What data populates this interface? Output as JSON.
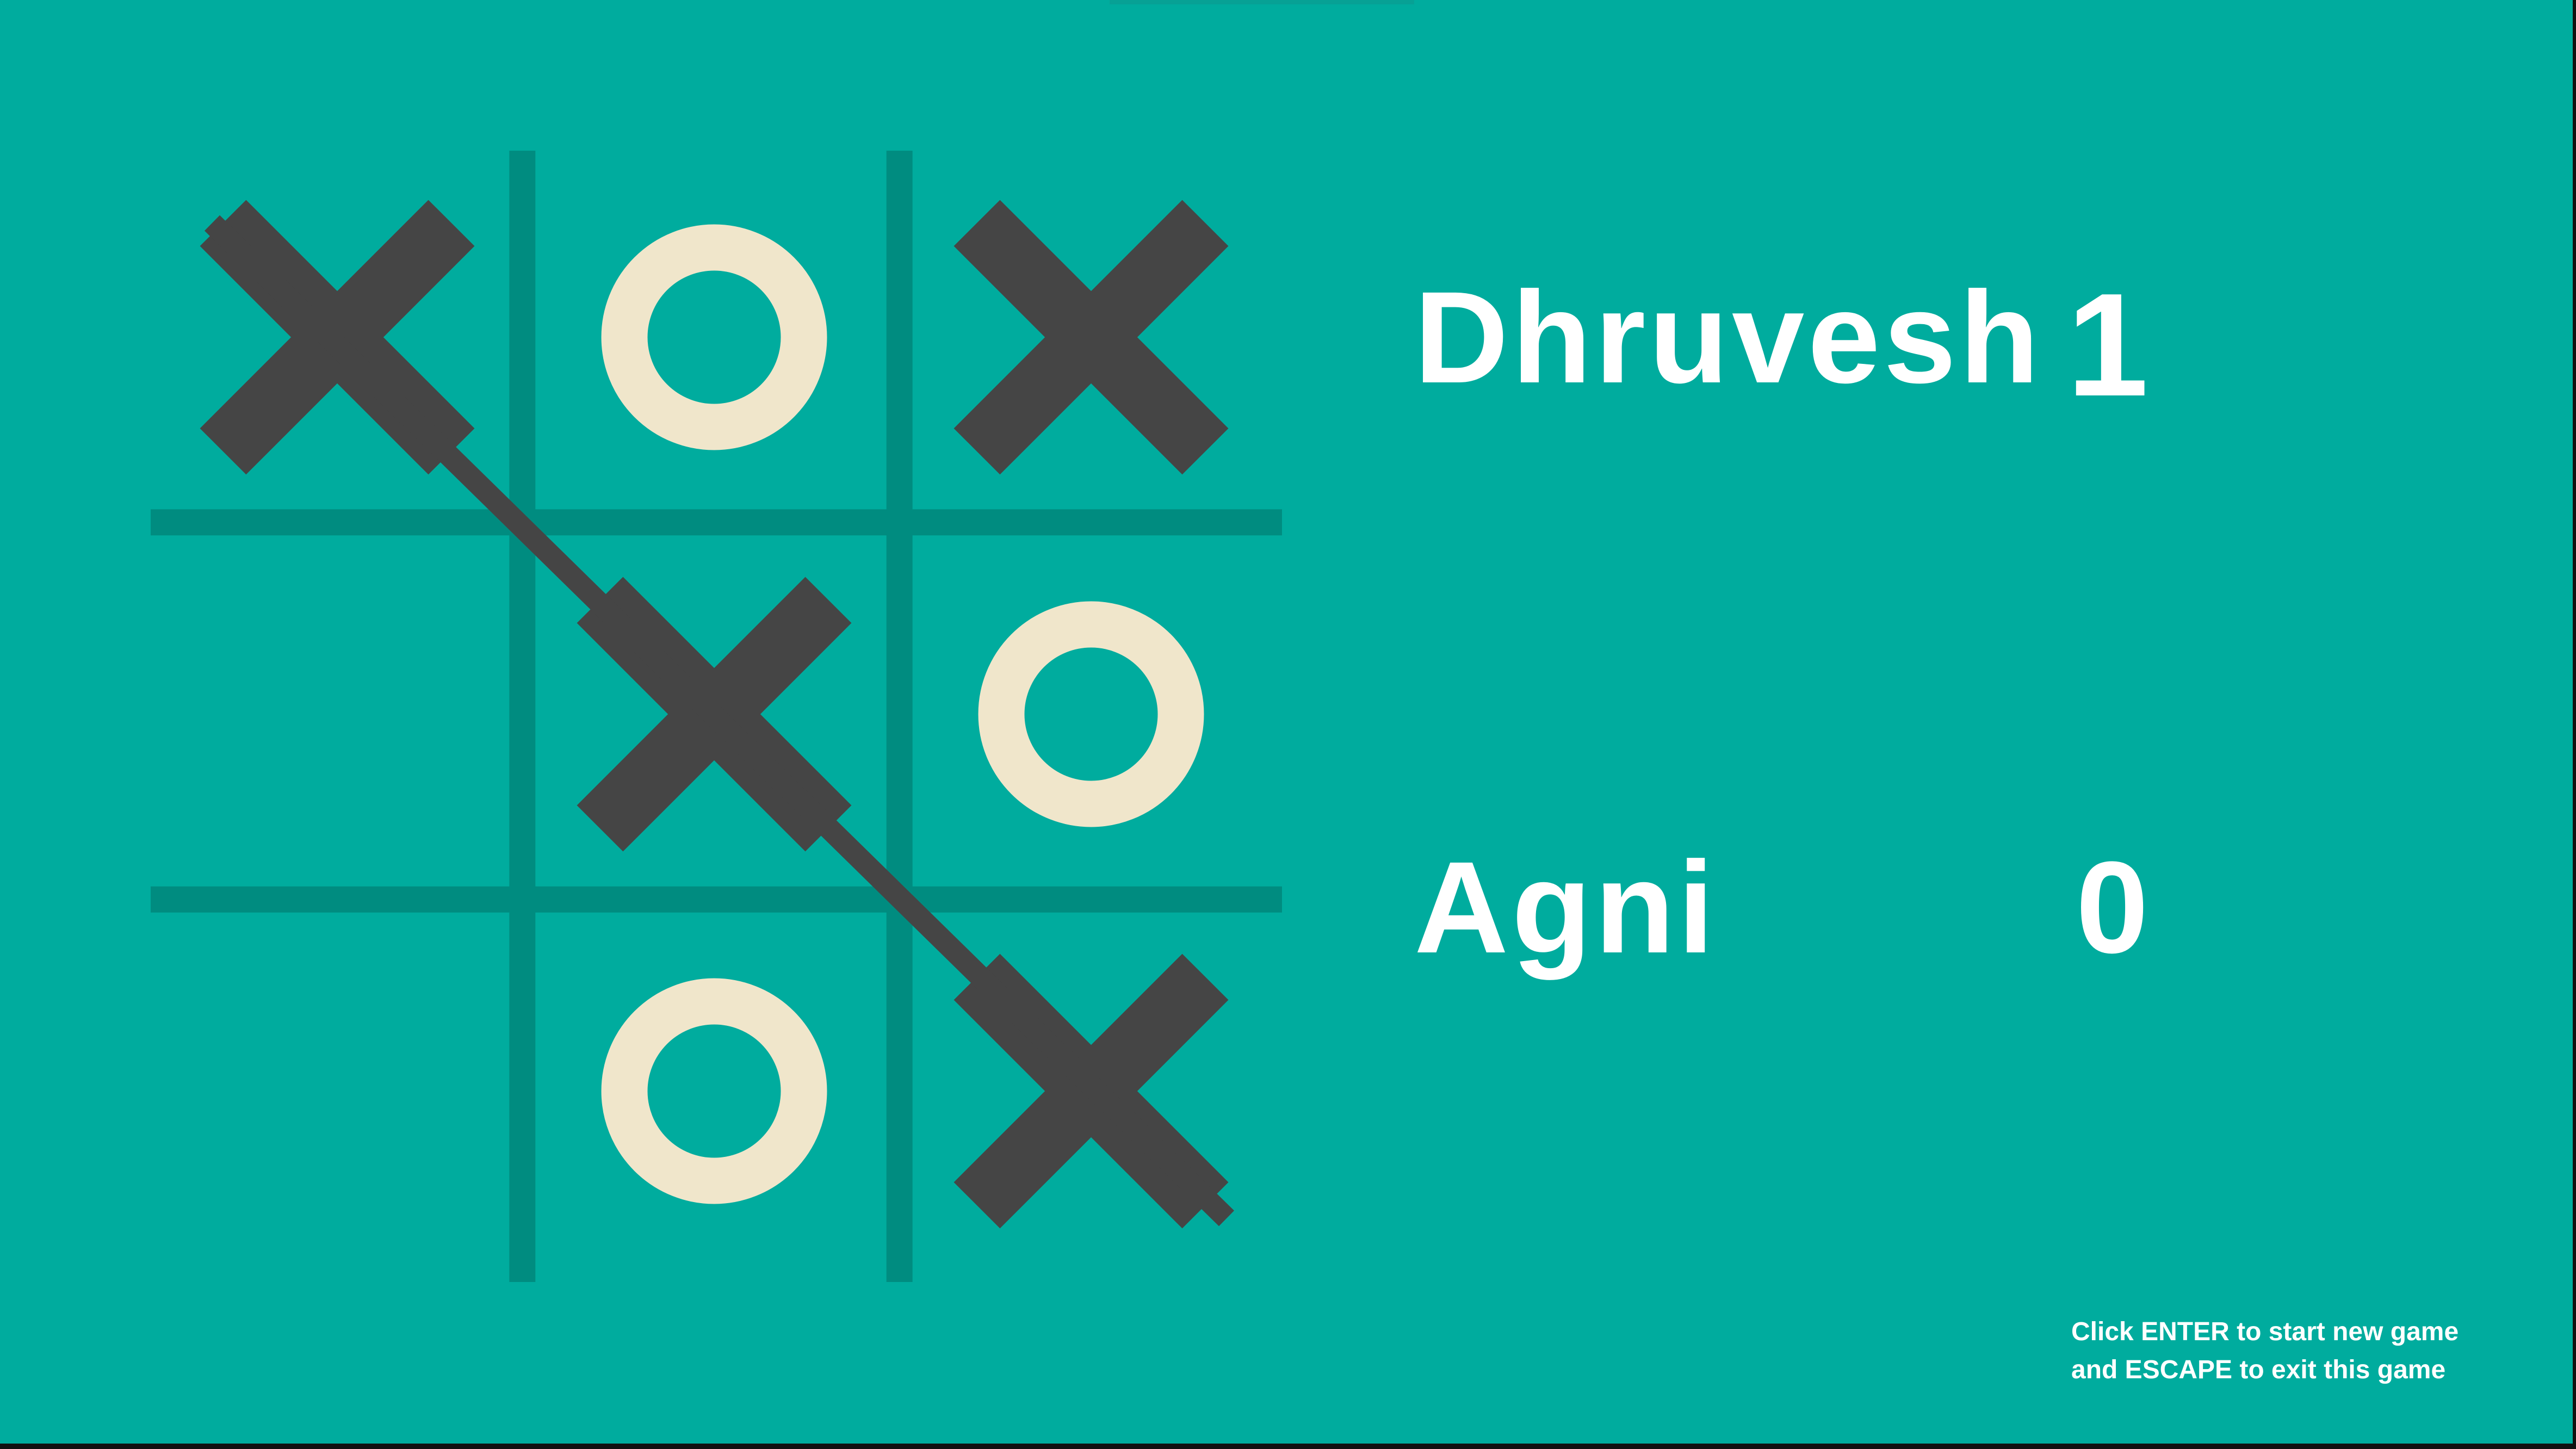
{
  "colors": {
    "background": "#00ac9e",
    "grid_line": "#008c80",
    "x_mark": "#454545",
    "o_mark": "#f0e6cb",
    "text": "#ffffff"
  },
  "board": {
    "cells": [
      [
        "X",
        "O",
        "X"
      ],
      [
        "",
        "X",
        "O"
      ],
      [
        "",
        "O",
        "X"
      ]
    ],
    "winning_line": "diagonal-top-left-to-bottom-right"
  },
  "players": [
    {
      "name": "Dhruvesh",
      "score": "1"
    },
    {
      "name": "Agni",
      "score": "0"
    }
  ],
  "instructions": {
    "line1": "Click ENTER to start new game",
    "line2": "and ESCAPE to exit this game"
  }
}
